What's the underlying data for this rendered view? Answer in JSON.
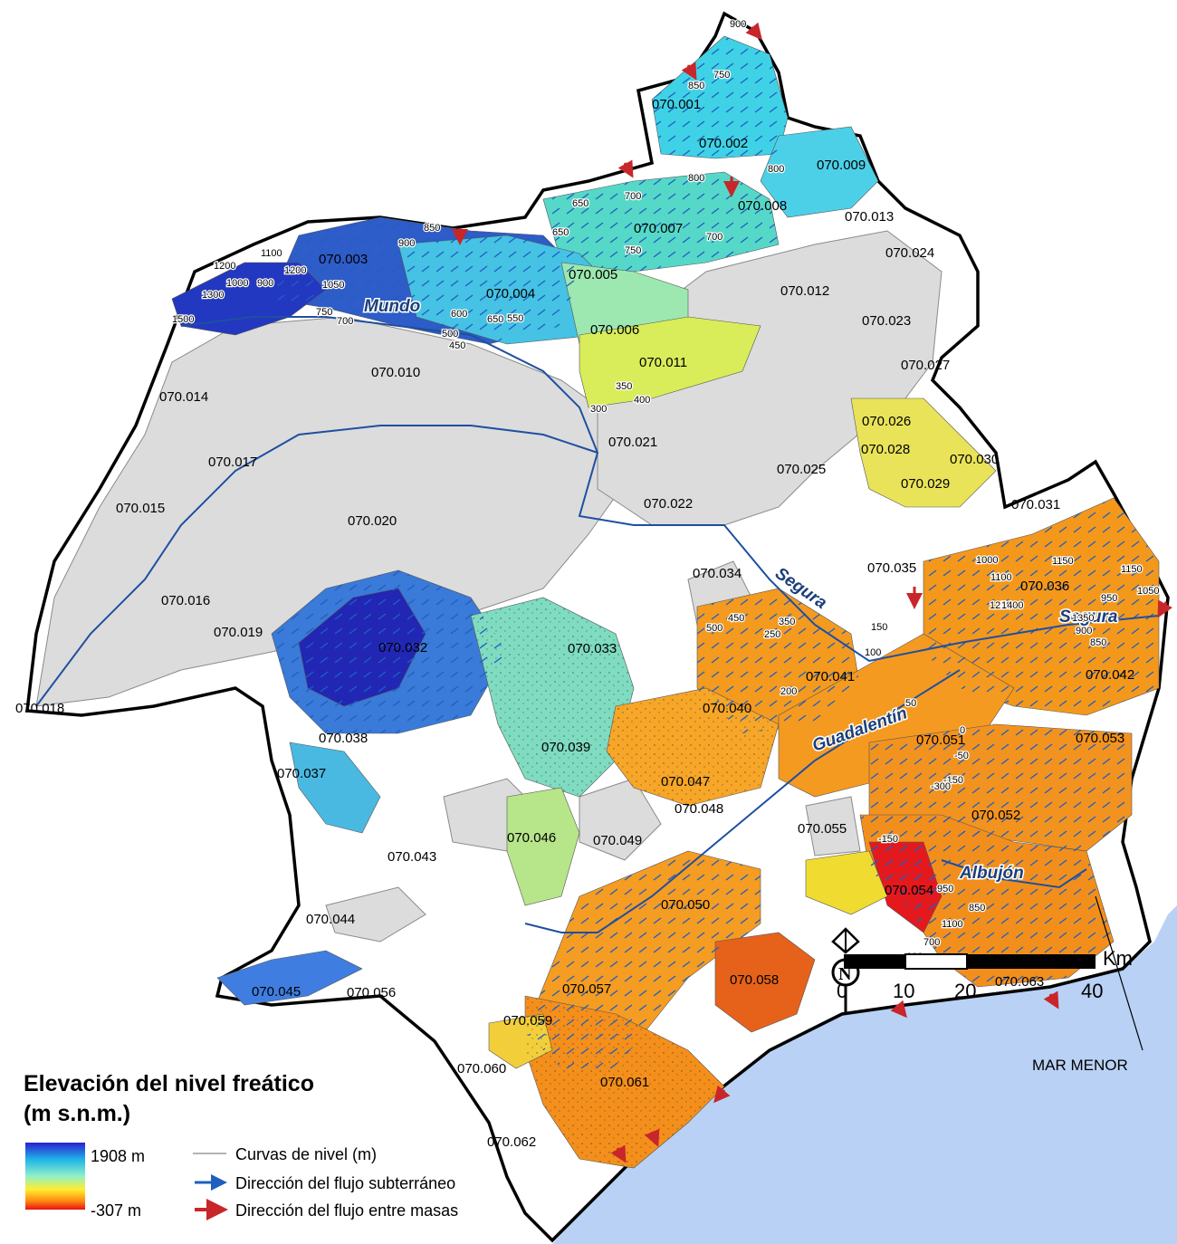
{
  "legend": {
    "title_line1": "Elevación del nivel freático",
    "title_line2": "(m s.n.m.)",
    "max_value": "1908 m",
    "min_value": "-307 m",
    "items": [
      {
        "label": "Curvas de nivel (m)",
        "color": "#9a9a9a"
      },
      {
        "label": "Dirección del flujo subterráneo",
        "color": "#1f5fbf"
      },
      {
        "label": "Dirección del flujo entre masas",
        "color": "#c8262b"
      }
    ],
    "gradient_colors": [
      "#2a1fd0",
      "#1fb4e8",
      "#8ff0c8",
      "#ffee30",
      "#ff8a10",
      "#e81010"
    ]
  },
  "scale": {
    "unit": "Km",
    "ticks": [
      "0",
      "10",
      "20",
      "40"
    ]
  },
  "north_arrow": {
    "letter": "N"
  },
  "sea_label": "MAR MENOR",
  "rivers": [
    "Mundo",
    "Segura",
    "Segura",
    "Guadalentín",
    "Albujón"
  ],
  "aquifers": [
    "070.001",
    "070.002",
    "070.003",
    "070.004",
    "070.005",
    "070.006",
    "070.007",
    "070.008",
    "070.009",
    "070.010",
    "070.011",
    "070.012",
    "070.013",
    "070.014",
    "070.015",
    "070.016",
    "070.017",
    "070.018",
    "070.019",
    "070.020",
    "070.021",
    "070.022",
    "070.023",
    "070.024",
    "070.025",
    "070.026",
    "070.027",
    "070.028",
    "070.029",
    "070.030",
    "070.031",
    "070.032",
    "070.033",
    "070.034",
    "070.035",
    "070.036",
    "070.037",
    "070.038",
    "070.039",
    "070.040",
    "070.041",
    "070.042",
    "070.043",
    "070.044",
    "070.045",
    "070.046",
    "070.047",
    "070.048",
    "070.049",
    "070.050",
    "070.051",
    "070.052",
    "070.053",
    "070.054",
    "070.055",
    "070.056",
    "070.057",
    "070.058",
    "070.059",
    "070.060",
    "070.061",
    "070.062",
    "070.063"
  ],
  "contours": [
    "900",
    "850",
    "750",
    "650",
    "700",
    "800",
    "800",
    "700",
    "650",
    "750",
    "900",
    "850",
    "1200",
    "1100",
    "1200",
    "1000",
    "900",
    "1300",
    "1500",
    "700",
    "750",
    "1050",
    "600",
    "650",
    "500",
    "450",
    "550",
    "350",
    "400",
    "300",
    "1150",
    "1100",
    "1000",
    "1250",
    "1400",
    "1350",
    "1150",
    "1050",
    "950",
    "900",
    "850",
    "500",
    "450",
    "350",
    "250",
    "200",
    "150",
    "100",
    "50",
    "0",
    "-50",
    "-150",
    "-300",
    "-150",
    "950",
    "850",
    "1100",
    "700",
    "600"
  ],
  "colors": {
    "basin_gray": "#dcdcdc",
    "sea": "#b9d1f5",
    "high": "#3a58c8",
    "mid_high": "#48c9e0",
    "mid": "#9ee4b8",
    "mid_low": "#e8e64a",
    "low": "#f59a1e",
    "lowest": "#e3191e"
  }
}
